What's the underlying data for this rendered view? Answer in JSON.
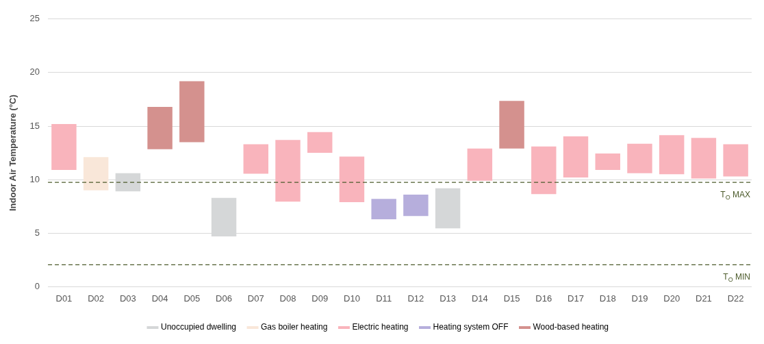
{
  "chart_data": {
    "type": "bar",
    "ylabel": "Indoor Air Temperature (°C)",
    "categories": [
      "D01",
      "D02",
      "D03",
      "D04",
      "D05",
      "D06",
      "D07",
      "D08",
      "D09",
      "D10",
      "D11",
      "D12",
      "D13",
      "D14",
      "D15",
      "D16",
      "D17",
      "D18",
      "D19",
      "D20",
      "D21",
      "D22"
    ],
    "series": [
      {
        "name": "Unoccupied dwelling",
        "color": "#d5d7d8",
        "base": [
          null,
          null,
          8.9,
          null,
          null,
          4.7,
          null,
          null,
          null,
          null,
          null,
          null,
          5.45,
          null,
          null,
          null,
          null,
          null,
          null,
          null,
          null,
          null
        ],
        "values": [
          null,
          null,
          1.7,
          null,
          null,
          3.6,
          null,
          null,
          null,
          null,
          null,
          null,
          3.75,
          null,
          null,
          null,
          null,
          null,
          null,
          null,
          null,
          null
        ]
      },
      {
        "name": "Gas boiler heating",
        "color": "#f9e7d9",
        "base": [
          null,
          9.0,
          null,
          null,
          null,
          null,
          null,
          null,
          null,
          null,
          null,
          null,
          null,
          null,
          null,
          null,
          null,
          null,
          null,
          null,
          null,
          null
        ],
        "values": [
          null,
          3.1,
          null,
          null,
          null,
          null,
          null,
          null,
          null,
          null,
          null,
          null,
          null,
          null,
          null,
          null,
          null,
          null,
          null,
          null,
          null,
          null
        ]
      },
      {
        "name": "Electric heating",
        "color": "#f9b4bc",
        "base": [
          10.9,
          null,
          null,
          null,
          null,
          null,
          10.55,
          7.95,
          12.5,
          7.9,
          null,
          null,
          null,
          9.9,
          null,
          8.65,
          10.2,
          10.9,
          10.6,
          10.5,
          10.1,
          10.3
        ],
        "values": [
          4.3,
          null,
          null,
          null,
          null,
          null,
          2.75,
          5.75,
          1.95,
          4.25,
          null,
          null,
          null,
          3.0,
          null,
          4.45,
          3.85,
          1.55,
          2.75,
          3.65,
          3.8,
          3.0
        ]
      },
      {
        "name": "Heating system OFF",
        "color": "#b6aedc",
        "base": [
          null,
          null,
          null,
          null,
          null,
          null,
          null,
          null,
          null,
          null,
          6.3,
          6.6,
          null,
          null,
          null,
          null,
          null,
          null,
          null,
          null,
          null,
          null
        ],
        "values": [
          null,
          null,
          null,
          null,
          null,
          null,
          null,
          null,
          null,
          null,
          1.9,
          2.0,
          null,
          null,
          null,
          null,
          null,
          null,
          null,
          null,
          null,
          null
        ]
      },
      {
        "name": "Wood-based heating",
        "color": "#d4918e",
        "base": [
          null,
          null,
          null,
          12.85,
          13.5,
          null,
          null,
          null,
          null,
          null,
          null,
          null,
          null,
          null,
          12.9,
          null,
          null,
          null,
          null,
          null,
          null,
          null
        ],
        "values": [
          null,
          null,
          null,
          3.95,
          5.7,
          null,
          null,
          null,
          null,
          null,
          null,
          null,
          null,
          null,
          4.45,
          null,
          null,
          null,
          null,
          null,
          null,
          null
        ]
      }
    ],
    "ylim": [
      0,
      25
    ],
    "yticks": [
      0,
      5,
      10,
      15,
      20,
      25
    ],
    "grid": "y",
    "legend": "bottom",
    "ref_lines": [
      {
        "axis": "y",
        "value": 9.75,
        "label": "T$_{O}$ MAX",
        "color": "#4b5a2a",
        "line_style": "dashed"
      },
      {
        "axis": "y",
        "value": 2.05,
        "label": "T$_{O}$ MIN",
        "color": "#4b5a2a",
        "line_style": "dashed"
      }
    ]
  }
}
